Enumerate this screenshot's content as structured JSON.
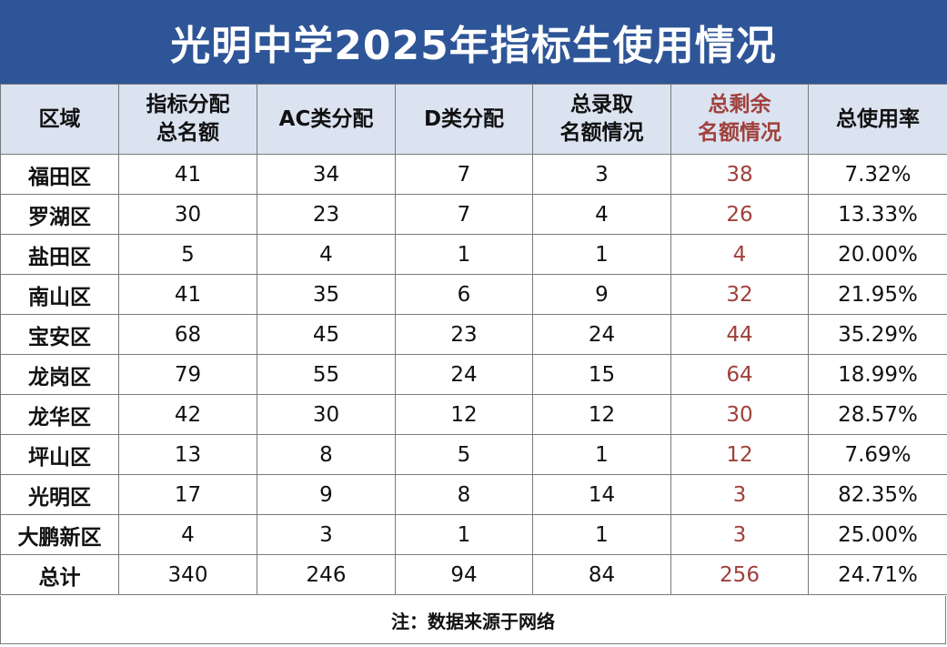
{
  "title": "光明中学2025年指标生使用情况",
  "colors": {
    "title_bg": "#2e5597",
    "header_bg": "#dbe3f1",
    "accent_text": "#a0403b"
  },
  "table": {
    "headers": [
      {
        "line1": "区域",
        "line2": ""
      },
      {
        "line1": "指标分配",
        "line2": "总名额"
      },
      {
        "line1": "AC类分配",
        "line2": ""
      },
      {
        "line1": "D类分配",
        "line2": ""
      },
      {
        "line1": "总录取",
        "line2": "名额情况"
      },
      {
        "line1": "总剩余",
        "line2": "名额情况"
      },
      {
        "line1": "总使用率",
        "line2": ""
      }
    ],
    "rows": [
      {
        "region": "福田区",
        "quota": "41",
        "ac": "34",
        "d": "7",
        "admitted": "3",
        "remaining": "38",
        "rate": "7.32%"
      },
      {
        "region": "罗湖区",
        "quota": "30",
        "ac": "23",
        "d": "7",
        "admitted": "4",
        "remaining": "26",
        "rate": "13.33%"
      },
      {
        "region": "盐田区",
        "quota": "5",
        "ac": "4",
        "d": "1",
        "admitted": "1",
        "remaining": "4",
        "rate": "20.00%"
      },
      {
        "region": "南山区",
        "quota": "41",
        "ac": "35",
        "d": "6",
        "admitted": "9",
        "remaining": "32",
        "rate": "21.95%"
      },
      {
        "region": "宝安区",
        "quota": "68",
        "ac": "45",
        "d": "23",
        "admitted": "24",
        "remaining": "44",
        "rate": "35.29%"
      },
      {
        "region": "龙岗区",
        "quota": "79",
        "ac": "55",
        "d": "24",
        "admitted": "15",
        "remaining": "64",
        "rate": "18.99%"
      },
      {
        "region": "龙华区",
        "quota": "42",
        "ac": "30",
        "d": "12",
        "admitted": "12",
        "remaining": "30",
        "rate": "28.57%"
      },
      {
        "region": "坪山区",
        "quota": "13",
        "ac": "8",
        "d": "5",
        "admitted": "1",
        "remaining": "12",
        "rate": "7.69%"
      },
      {
        "region": "光明区",
        "quota": "17",
        "ac": "9",
        "d": "8",
        "admitted": "14",
        "remaining": "3",
        "rate": "82.35%"
      },
      {
        "region": "大鹏新区",
        "quota": "4",
        "ac": "3",
        "d": "1",
        "admitted": "1",
        "remaining": "3",
        "rate": "25.00%"
      },
      {
        "region": "总计",
        "quota": "340",
        "ac": "246",
        "d": "94",
        "admitted": "84",
        "remaining": "256",
        "rate": "24.71%"
      }
    ]
  },
  "footnote": "注：数据来源于网络"
}
